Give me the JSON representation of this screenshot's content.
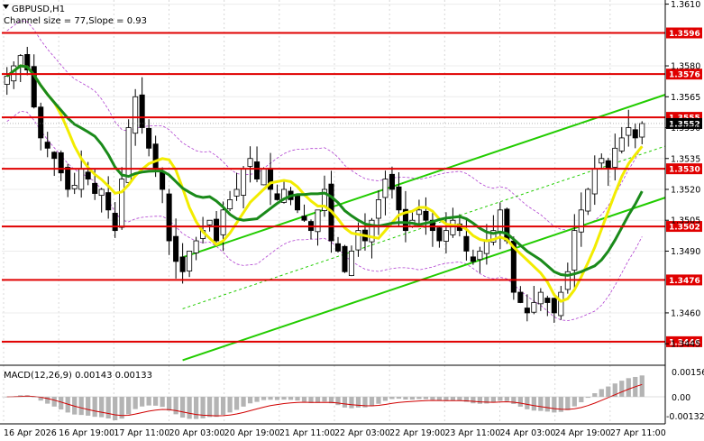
{
  "header": {
    "symbol": "GBPUSD,H1",
    "channel_info": "Channel size = 77,Slope = 0.93"
  },
  "macd": {
    "label": "MACD(12,26,9) 0.00143 0.00133",
    "ticks": [
      "0.00156",
      "0.00",
      "-0.00132"
    ]
  },
  "colors": {
    "level_line": "#e00000",
    "channel": "#22cc00",
    "ma_fast": "#f2ec00",
    "ma_slow": "#1a8a1a",
    "envelope": "#b040d0",
    "candle": "#000000",
    "macd_hist": "#b4b4b4",
    "macd_signal": "#d00000"
  },
  "chart_data": {
    "type": "candlestick",
    "symbol": "GBPUSD",
    "timeframe": "H1",
    "ylim": [
      1.3435,
      1.3612
    ],
    "y_ticks": [
      1.361,
      1.358,
      1.3565,
      1.355,
      1.3535,
      1.352,
      1.3505,
      1.349,
      1.346,
      1.3445
    ],
    "x_ticks": [
      "16 Apr 2026",
      "16 Apr 19:00",
      "17 Apr 11:00",
      "20 Apr 03:00",
      "20 Apr 19:00",
      "21 Apr 11:00",
      "22 Apr 03:00",
      "22 Apr 19:00",
      "23 Apr 11:00",
      "24 Apr 03:00",
      "24 Apr 19:00",
      "27 Apr 11:00"
    ],
    "levels": [
      1.3596,
      1.3576,
      1.3555,
      1.353,
      1.3502,
      1.3476,
      1.3446
    ],
    "current_price": 1.3552,
    "channel": {
      "slope_label": "0.93",
      "size": 77
    },
    "closes": [
      1.3575,
      1.358,
      1.3585,
      1.3578,
      1.356,
      1.3545,
      1.354,
      1.3535,
      1.3528,
      1.352,
      1.3522,
      1.353,
      1.3525,
      1.3518,
      1.352,
      1.351,
      1.35,
      1.3525,
      1.355,
      1.3565,
      1.355,
      1.354,
      1.353,
      1.352,
      1.3495,
      1.3485,
      1.348,
      1.349,
      1.3495,
      1.35,
      1.3505,
      1.3495,
      1.351,
      1.3515,
      1.352,
      1.353,
      1.3535,
      1.3525,
      1.353,
      1.352,
      1.3515,
      1.352,
      1.3515,
      1.351,
      1.3505,
      1.35,
      1.351,
      1.352,
      1.3495,
      1.349,
      1.348,
      1.349,
      1.35,
      1.3495,
      1.3505,
      1.3515,
      1.3525,
      1.352,
      1.351,
      1.35,
      1.3505,
      1.351,
      1.3505,
      1.35,
      1.3495,
      1.35,
      1.3505,
      1.35,
      1.349,
      1.3485,
      1.349,
      1.3495,
      1.35,
      1.351,
      1.3495,
      1.347,
      1.3465,
      1.346,
      1.3465,
      1.347,
      1.3465,
      1.346,
      1.347,
      1.348,
      1.35,
      1.351,
      1.352,
      1.353,
      1.3535,
      1.353,
      1.354,
      1.3545,
      1.355,
      1.3545,
      1.3552
    ]
  }
}
